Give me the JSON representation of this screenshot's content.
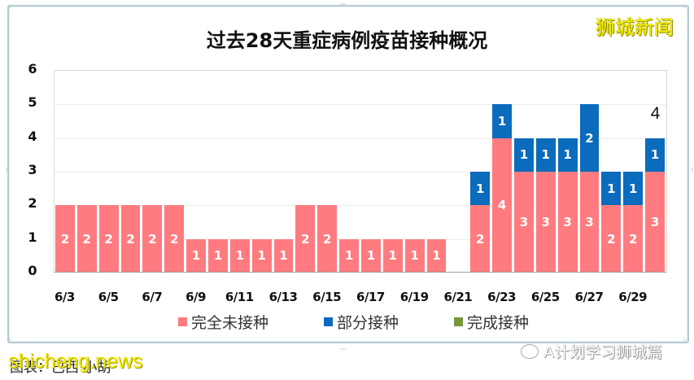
{
  "brand": "狮城新闻",
  "footer": {
    "source_label": "图表：巴西·小胡",
    "site_watermark": "shicheng.news",
    "wechat_watermark": "A计划学习狮城篇"
  },
  "colors": {
    "unvaccinated": "#ff7b7f",
    "partial": "#0b6bbd",
    "full": "#77963a"
  },
  "chart_data": {
    "type": "bar",
    "stacked": true,
    "title": "过去28天重症病例疫苗接种概况",
    "xlabel": "",
    "ylabel": "",
    "ylim": [
      0,
      6
    ],
    "yticks": [
      0,
      1,
      2,
      3,
      4,
      5,
      6
    ],
    "grid": true,
    "legend_position": "bottom",
    "categories": [
      "6/3",
      "6/4",
      "6/5",
      "6/6",
      "6/7",
      "6/8",
      "6/9",
      "6/10",
      "6/11",
      "6/12",
      "6/13",
      "6/14",
      "6/15",
      "6/16",
      "6/17",
      "6/18",
      "6/19",
      "6/20",
      "6/21",
      "6/22",
      "6/23",
      "6/24",
      "6/25",
      "6/26",
      "6/27",
      "6/28",
      "6/29",
      "6/30"
    ],
    "xtick_labels": [
      "6/3",
      "6/5",
      "6/7",
      "6/9",
      "6/11",
      "6/13",
      "6/15",
      "6/17",
      "6/19",
      "6/21",
      "6/23",
      "6/25",
      "6/27",
      "6/29"
    ],
    "series": [
      {
        "name": "完全未接种",
        "color": "#ff7b7f",
        "values": [
          2,
          2,
          2,
          2,
          2,
          2,
          1,
          1,
          1,
          1,
          1,
          2,
          2,
          1,
          1,
          1,
          1,
          1,
          0,
          2,
          4,
          3,
          3,
          3,
          3,
          2,
          2,
          3
        ]
      },
      {
        "name": "部分接种",
        "color": "#0b6bbd",
        "values": [
          0,
          0,
          0,
          0,
          0,
          0,
          0,
          0,
          0,
          0,
          0,
          0,
          0,
          0,
          0,
          0,
          0,
          0,
          0,
          1,
          1,
          1,
          1,
          1,
          2,
          1,
          1,
          1
        ]
      },
      {
        "name": "完成接种",
        "color": "#77963a",
        "values": [
          0,
          0,
          0,
          0,
          0,
          0,
          0,
          0,
          0,
          0,
          0,
          0,
          0,
          0,
          0,
          0,
          0,
          0,
          0,
          0,
          0,
          0,
          0,
          0,
          0,
          0,
          0,
          0
        ]
      }
    ],
    "annotations": [
      {
        "category": "6/30",
        "text": "4"
      }
    ]
  }
}
